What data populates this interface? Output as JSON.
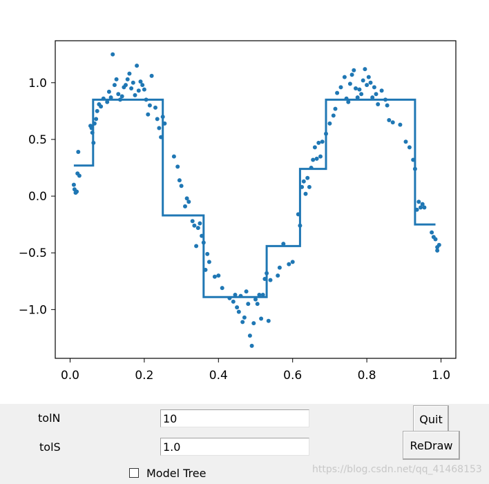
{
  "chart_data": {
    "type": "scatter",
    "title": "",
    "xlabel": "",
    "ylabel": "",
    "xlim": [
      -0.04,
      1.04
    ],
    "ylim": [
      -1.43,
      1.37
    ],
    "x_ticks": [
      "0.0",
      "0.2",
      "0.4",
      "0.6",
      "0.8",
      "1.0"
    ],
    "y_ticks": [
      "1.0",
      "0.5",
      "0.0",
      "−0.5",
      "−1.0"
    ],
    "grid": false,
    "color": "#1f77b4",
    "series": [
      {
        "kind": "scatter",
        "points": [
          [
            0.01,
            0.1
          ],
          [
            0.012,
            0.06
          ],
          [
            0.015,
            0.03
          ],
          [
            0.018,
            0.04
          ],
          [
            0.02,
            0.2
          ],
          [
            0.022,
            0.39
          ],
          [
            0.025,
            0.18
          ],
          [
            0.055,
            0.62
          ],
          [
            0.058,
            0.6
          ],
          [
            0.06,
            0.56
          ],
          [
            0.063,
            0.47
          ],
          [
            0.066,
            0.64
          ],
          [
            0.07,
            0.68
          ],
          [
            0.073,
            0.75
          ],
          [
            0.078,
            0.81
          ],
          [
            0.083,
            0.79
          ],
          [
            0.09,
            0.86
          ],
          [
            0.1,
            0.83
          ],
          [
            0.105,
            0.92
          ],
          [
            0.11,
            0.87
          ],
          [
            0.115,
            1.25
          ],
          [
            0.12,
            0.98
          ],
          [
            0.125,
            1.03
          ],
          [
            0.13,
            0.9
          ],
          [
            0.135,
            0.85
          ],
          [
            0.14,
            0.88
          ],
          [
            0.145,
            0.96
          ],
          [
            0.15,
            0.98
          ],
          [
            0.155,
            1.03
          ],
          [
            0.16,
            1.08
          ],
          [
            0.165,
            0.95
          ],
          [
            0.17,
            1.0
          ],
          [
            0.175,
            0.89
          ],
          [
            0.18,
            1.15
          ],
          [
            0.185,
            0.93
          ],
          [
            0.19,
            1.01
          ],
          [
            0.195,
            0.98
          ],
          [
            0.2,
            0.94
          ],
          [
            0.205,
            0.85
          ],
          [
            0.21,
            0.72
          ],
          [
            0.215,
            0.8
          ],
          [
            0.22,
            1.06
          ],
          [
            0.23,
            0.78
          ],
          [
            0.235,
            0.68
          ],
          [
            0.24,
            0.6
          ],
          [
            0.245,
            0.52
          ],
          [
            0.25,
            0.7
          ],
          [
            0.255,
            0.64
          ],
          [
            0.28,
            0.35
          ],
          [
            0.29,
            0.26
          ],
          [
            0.295,
            0.14
          ],
          [
            0.3,
            0.09
          ],
          [
            0.31,
            -0.09
          ],
          [
            0.315,
            -0.02
          ],
          [
            0.32,
            -0.05
          ],
          [
            0.33,
            -0.22
          ],
          [
            0.335,
            -0.26
          ],
          [
            0.34,
            -0.44
          ],
          [
            0.345,
            -0.28
          ],
          [
            0.35,
            -0.24
          ],
          [
            0.355,
            -0.35
          ],
          [
            0.36,
            -0.41
          ],
          [
            0.365,
            -0.65
          ],
          [
            0.37,
            -0.51
          ],
          [
            0.375,
            -0.58
          ],
          [
            0.39,
            -0.71
          ],
          [
            0.4,
            -0.7
          ],
          [
            0.41,
            -0.81
          ],
          [
            0.43,
            -0.9
          ],
          [
            0.44,
            -0.93
          ],
          [
            0.445,
            -0.87
          ],
          [
            0.45,
            -0.98
          ],
          [
            0.455,
            -1.02
          ],
          [
            0.46,
            -0.88
          ],
          [
            0.465,
            -1.11
          ],
          [
            0.47,
            -1.07
          ],
          [
            0.475,
            -0.84
          ],
          [
            0.48,
            -0.95
          ],
          [
            0.485,
            -1.23
          ],
          [
            0.49,
            -1.32
          ],
          [
            0.495,
            -1.12
          ],
          [
            0.5,
            -0.91
          ],
          [
            0.505,
            -0.95
          ],
          [
            0.51,
            -0.87
          ],
          [
            0.515,
            -1.08
          ],
          [
            0.52,
            -0.87
          ],
          [
            0.525,
            -0.73
          ],
          [
            0.53,
            -0.68
          ],
          [
            0.535,
            -1.1
          ],
          [
            0.54,
            -0.74
          ],
          [
            0.56,
            -0.7
          ],
          [
            0.565,
            -0.63
          ],
          [
            0.575,
            -0.42
          ],
          [
            0.59,
            -0.6
          ],
          [
            0.6,
            -0.58
          ],
          [
            0.615,
            -0.16
          ],
          [
            0.62,
            -0.26
          ],
          [
            0.625,
            0.08
          ],
          [
            0.63,
            0.13
          ],
          [
            0.635,
            0.02
          ],
          [
            0.64,
            0.16
          ],
          [
            0.645,
            0.08
          ],
          [
            0.65,
            0.25
          ],
          [
            0.655,
            0.32
          ],
          [
            0.66,
            0.43
          ],
          [
            0.665,
            0.33
          ],
          [
            0.67,
            0.47
          ],
          [
            0.675,
            0.35
          ],
          [
            0.68,
            0.48
          ],
          [
            0.69,
            0.55
          ],
          [
            0.7,
            0.64
          ],
          [
            0.71,
            0.71
          ],
          [
            0.715,
            0.77
          ],
          [
            0.72,
            0.91
          ],
          [
            0.73,
            0.96
          ],
          [
            0.74,
            1.05
          ],
          [
            0.745,
            0.86
          ],
          [
            0.75,
            0.83
          ],
          [
            0.755,
            0.99
          ],
          [
            0.76,
            1.07
          ],
          [
            0.765,
            1.11
          ],
          [
            0.77,
            0.95
          ],
          [
            0.775,
            0.87
          ],
          [
            0.78,
            0.94
          ],
          [
            0.785,
            0.9
          ],
          [
            0.79,
            1.02
          ],
          [
            0.795,
            1.12
          ],
          [
            0.8,
            0.98
          ],
          [
            0.805,
            1.05
          ],
          [
            0.81,
            1.0
          ],
          [
            0.815,
            0.87
          ],
          [
            0.82,
            0.96
          ],
          [
            0.825,
            0.9
          ],
          [
            0.83,
            0.81
          ],
          [
            0.84,
            0.93
          ],
          [
            0.85,
            0.85
          ],
          [
            0.855,
            0.8
          ],
          [
            0.86,
            0.67
          ],
          [
            0.87,
            0.65
          ],
          [
            0.89,
            0.63
          ],
          [
            0.905,
            0.48
          ],
          [
            0.915,
            0.43
          ],
          [
            0.925,
            0.32
          ],
          [
            0.93,
            0.24
          ],
          [
            0.935,
            -0.12
          ],
          [
            0.94,
            -0.05
          ],
          [
            0.945,
            -0.1
          ],
          [
            0.95,
            -0.07
          ],
          [
            0.955,
            -0.1
          ],
          [
            0.975,
            -0.32
          ],
          [
            0.98,
            -0.36
          ],
          [
            0.985,
            -0.38
          ],
          [
            0.99,
            -0.45
          ],
          [
            0.995,
            -0.43
          ],
          [
            0.99,
            -0.48
          ]
        ]
      },
      {
        "kind": "step-line",
        "points": [
          [
            0.01,
            0.27
          ],
          [
            0.062,
            0.27
          ],
          [
            0.062,
            0.85
          ],
          [
            0.25,
            0.85
          ],
          [
            0.25,
            -0.17
          ],
          [
            0.36,
            -0.17
          ],
          [
            0.36,
            -0.89
          ],
          [
            0.53,
            -0.89
          ],
          [
            0.53,
            -0.44
          ],
          [
            0.62,
            -0.44
          ],
          [
            0.62,
            0.24
          ],
          [
            0.69,
            0.24
          ],
          [
            0.69,
            0.85
          ],
          [
            0.93,
            0.85
          ],
          [
            0.93,
            -0.25
          ],
          [
            0.985,
            -0.25
          ]
        ]
      }
    ]
  },
  "controls": {
    "toln_label": "tolN",
    "toln_value": "10",
    "tols_label": "tolS",
    "tols_value": "1.0",
    "model_tree_label": "Model Tree",
    "model_tree_checked": false,
    "quit_label": "Quit",
    "redraw_label": "ReDraw"
  },
  "watermark": "https://blog.csdn.net/qq_41468153"
}
